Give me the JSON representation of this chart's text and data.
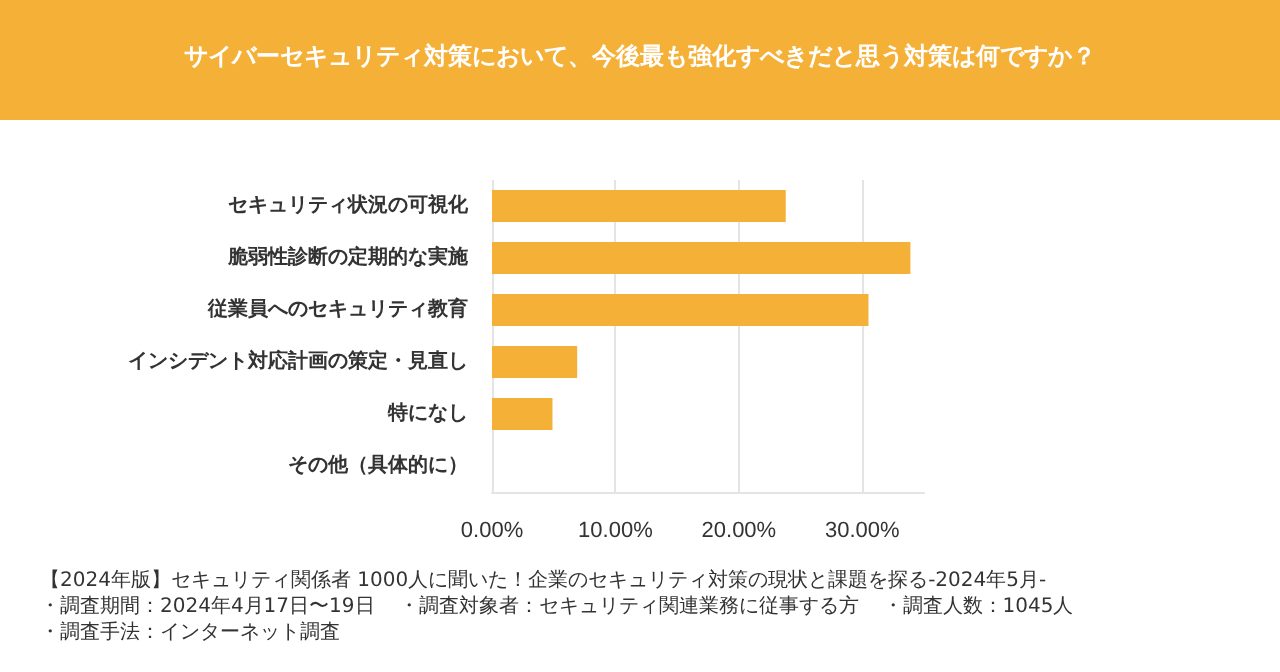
{
  "chart_data": {
    "type": "bar",
    "orientation": "horizontal",
    "title": "サイバーセキュリティ対策において、今後最も強化すべきだと思う対策は何ですか？",
    "categories": [
      "セキュリティ状況の可視化",
      "脆弱性診断の定期的な実施",
      "従業員へのセキュリティ教育",
      "インシデント対応計画の策定・見直し",
      "特になし",
      "その他（具体的に）"
    ],
    "values": [
      23.8,
      33.9,
      30.5,
      6.9,
      4.9,
      0
    ],
    "color": "#f5b038",
    "xlim": [
      0,
      35
    ],
    "xticks": [
      {
        "value": 0,
        "label": "0.00%"
      },
      {
        "value": 10,
        "label": "10.00%"
      },
      {
        "value": 20,
        "label": "20.00%"
      },
      {
        "value": 30,
        "label": "30.00%"
      }
    ],
    "grid": "x",
    "annotations": [
      "【2024年版】セキュリティ関係者 1000人に聞いた！企業のセキュリティ対策の現状と課題を探る-2024年5月-",
      "・調査期間：2024年4月17日〜19日",
      "・調査対象者：セキュリティ関連業務に従事する方",
      "・調査人数：1045人",
      "・調査手法：インターネット調査"
    ]
  }
}
